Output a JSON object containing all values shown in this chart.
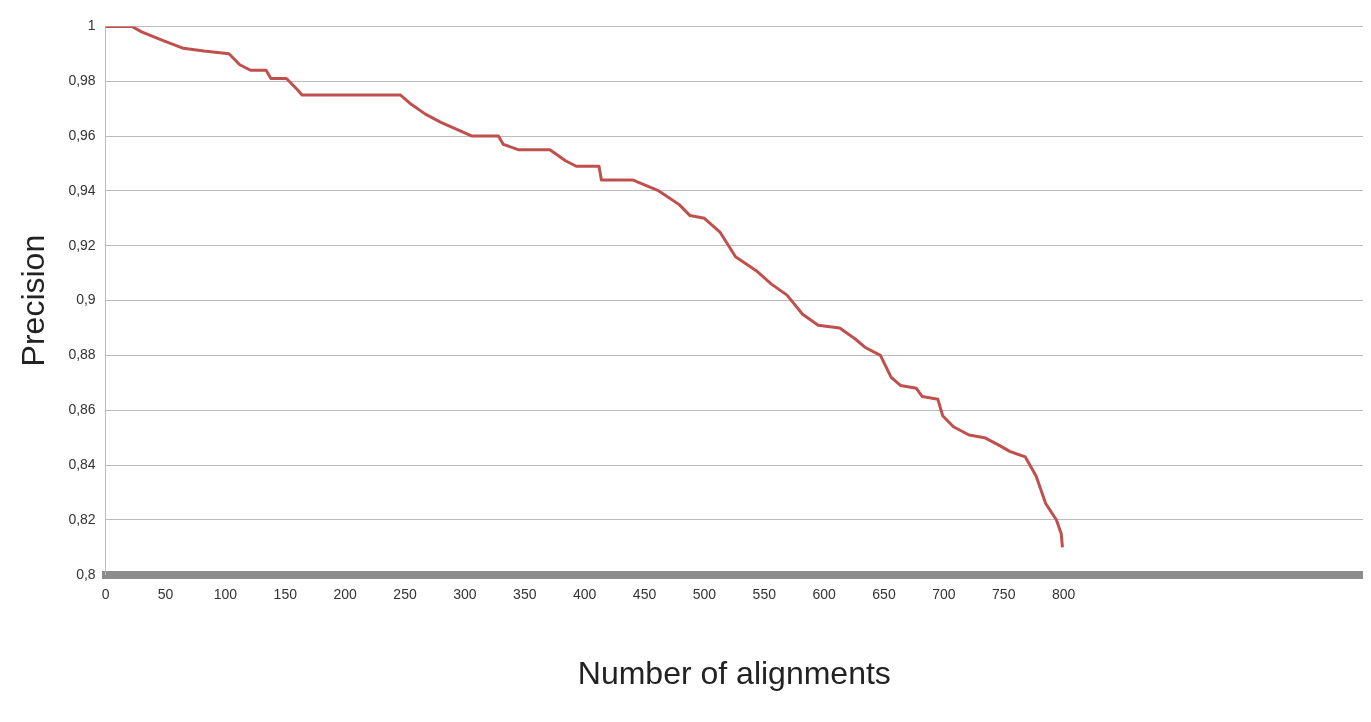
{
  "chart_data": {
    "type": "line",
    "xlabel": "Number of alignments",
    "ylabel": "Precision",
    "x": [
      0,
      22,
      30,
      47,
      65,
      82,
      103,
      112,
      121,
      134,
      138,
      151,
      160,
      164,
      246,
      254,
      267,
      280,
      306,
      328,
      332,
      345,
      371,
      384,
      393,
      412,
      414,
      440,
      462,
      479,
      488,
      500,
      513,
      526,
      543,
      556,
      569,
      582,
      595,
      613,
      626,
      634,
      647,
      656,
      664,
      677,
      682,
      695,
      699,
      708,
      721,
      734,
      747,
      755,
      768,
      777,
      785,
      794,
      798,
      799
    ],
    "series": [
      {
        "color": "#c0504d",
        "values": [
          1,
          1,
          0.998,
          0.995,
          0.992,
          0.991,
          0.99,
          0.986,
          0.984,
          0.984,
          0.981,
          0.981,
          0.977,
          0.975,
          0.975,
          0.972,
          0.968,
          0.965,
          0.96,
          0.96,
          0.957,
          0.955,
          0.955,
          0.951,
          0.949,
          0.949,
          0.944,
          0.944,
          0.94,
          0.935,
          0.931,
          0.93,
          0.925,
          0.916,
          0.911,
          0.906,
          0.902,
          0.895,
          0.891,
          0.89,
          0.886,
          0.883,
          0.88,
          0.872,
          0.869,
          0.868,
          0.865,
          0.864,
          0.858,
          0.854,
          0.851,
          0.85,
          0.847,
          0.845,
          0.843,
          0.836,
          0.826,
          0.82,
          0.815,
          0.81
        ]
      }
    ],
    "xlim": [
      0,
      1050
    ],
    "xticks": [
      0,
      50,
      100,
      150,
      200,
      250,
      300,
      350,
      400,
      450,
      500,
      550,
      600,
      650,
      700,
      750,
      800
    ],
    "ylim": [
      0.8,
      1
    ],
    "yticks": [
      {
        "value": 0.8,
        "label": "0,8"
      },
      {
        "value": 0.82,
        "label": "0,82"
      },
      {
        "value": 0.84,
        "label": "0,84"
      },
      {
        "value": 0.86,
        "label": "0,86"
      },
      {
        "value": 0.88,
        "label": "0,88"
      },
      {
        "value": 0.9,
        "label": "0,9"
      },
      {
        "value": 0.92,
        "label": "0,92"
      },
      {
        "value": 0.94,
        "label": "0,94"
      },
      {
        "value": 0.96,
        "label": "0,96"
      },
      {
        "value": 0.98,
        "label": "0,98"
      },
      1
    ],
    "grid": "y",
    "legend": false,
    "marker": "none",
    "line_style": "solid"
  }
}
